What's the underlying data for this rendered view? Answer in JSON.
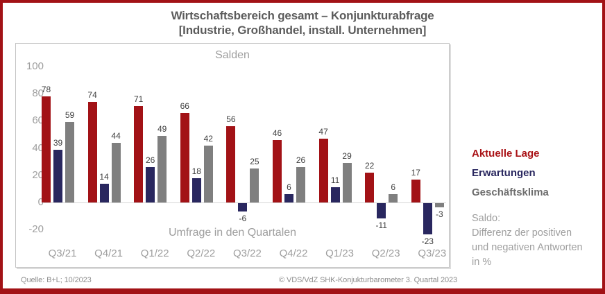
{
  "frame": {
    "border_color": "#A21216"
  },
  "title": {
    "line1": "Wirtschaftsbereich gesamt – Konjunkturabfrage",
    "line2": "[Industrie, Großhandel, install. Unternehmen]"
  },
  "chart_data": {
    "type": "bar",
    "title": "Salden",
    "xlabel": "Umfrage in den Quartalen",
    "ylabel": "",
    "categories": [
      "Q3/21",
      "Q4/21",
      "Q1/22",
      "Q2/22",
      "Q3/22",
      "Q4/22",
      "Q1/23",
      "Q2/23",
      "Q3/23"
    ],
    "series": [
      {
        "name": "Aktuelle Lage",
        "color": "#A21216",
        "values": [
          78,
          74,
          71,
          66,
          56,
          46,
          47,
          22,
          17
        ]
      },
      {
        "name": "Erwartungen",
        "color": "#29275F",
        "values": [
          39,
          14,
          26,
          18,
          -6,
          6,
          11,
          -11,
          -23
        ]
      },
      {
        "name": "Geschäftsklima",
        "color": "#7F7F7F",
        "values": [
          59,
          44,
          49,
          42,
          25,
          26,
          29,
          6,
          -3
        ]
      }
    ],
    "y_ticks": [
      100,
      80,
      60,
      40,
      20,
      0,
      -20
    ],
    "ylim": [
      -30,
      110
    ],
    "grid": false,
    "data_labels": true,
    "legend_position": "right"
  },
  "legend": {
    "items": [
      {
        "label": "Aktuelle Lage",
        "color": "#A91216"
      },
      {
        "label": "Erwartungen",
        "color": "#29275F"
      },
      {
        "label": "Geschäftsklima",
        "color": "#6e6e6e"
      }
    ],
    "note_lines": [
      "Saldo:",
      "Differenz der positiven",
      "und negativen Antworten",
      "in %"
    ]
  },
  "footer": {
    "source": "Quelle: B+L; 10/2023",
    "copyright": "© VDS/VdZ SHK-Konjukturbarometer 3. Quartal 2023"
  }
}
